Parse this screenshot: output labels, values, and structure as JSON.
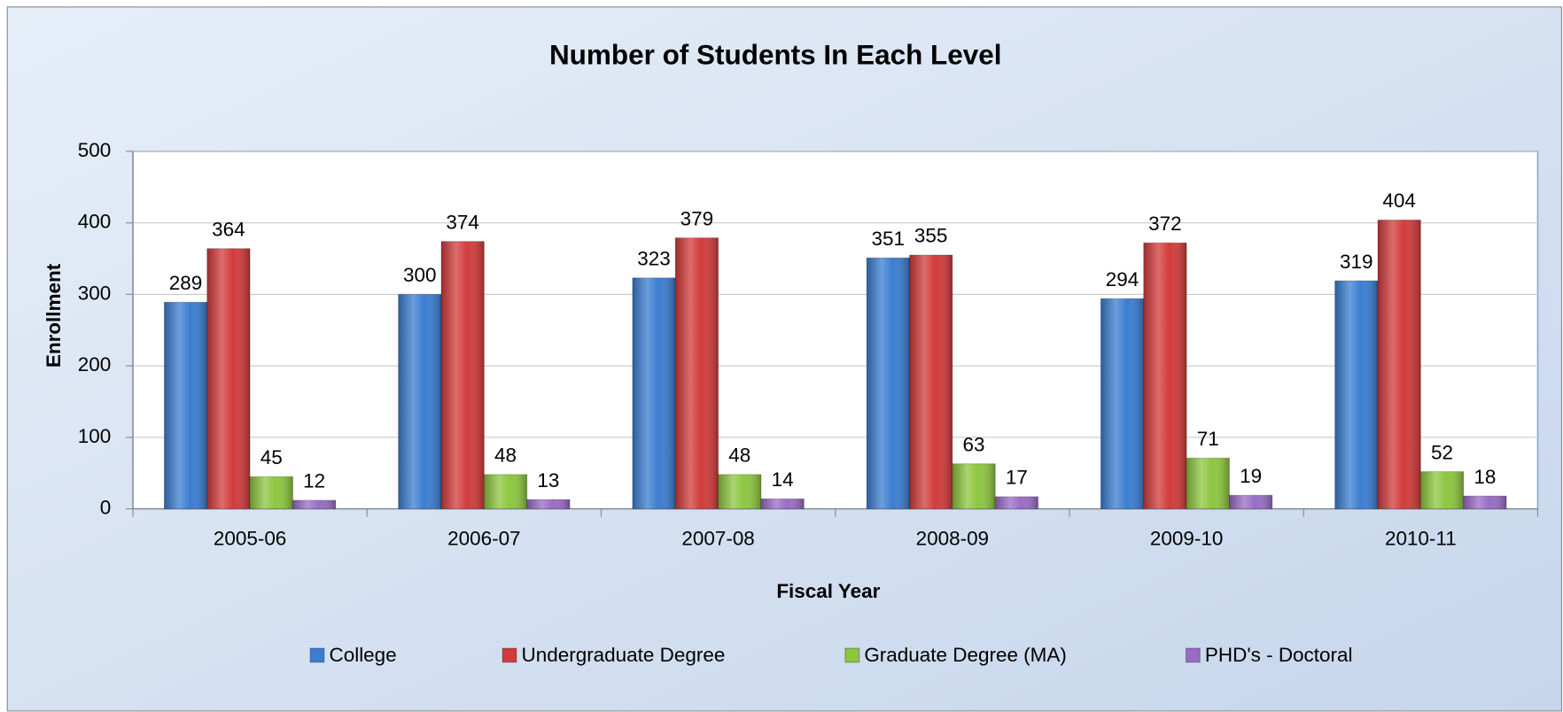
{
  "chart_data": {
    "type": "bar",
    "title": "Number of Students In Each Level",
    "x_label": "Fiscal Year",
    "y_label": "Enrollment",
    "categories": [
      "2005-06",
      "2006-07",
      "2007-08",
      "2008-09",
      "2009-10",
      "2010-11"
    ],
    "series": [
      {
        "name": "College",
        "color": "#3b7dd1",
        "values": [
          289,
          300,
          323,
          351,
          294,
          319
        ]
      },
      {
        "name": "Undergraduate Degree",
        "color": "#d23b3b",
        "values": [
          364,
          374,
          379,
          355,
          372,
          404
        ]
      },
      {
        "name": "Graduate Degree (MA)",
        "color": "#8dc63f",
        "values": [
          45,
          48,
          48,
          63,
          71,
          52
        ]
      },
      {
        "name": "PHD's - Doctoral",
        "color": "#9a6cc6",
        "values": [
          12,
          13,
          14,
          17,
          19,
          18
        ]
      }
    ],
    "ylim": [
      0,
      500
    ],
    "yticks": [
      0,
      100,
      200,
      300,
      400,
      500
    ],
    "grid": true,
    "legend": "bottom"
  }
}
